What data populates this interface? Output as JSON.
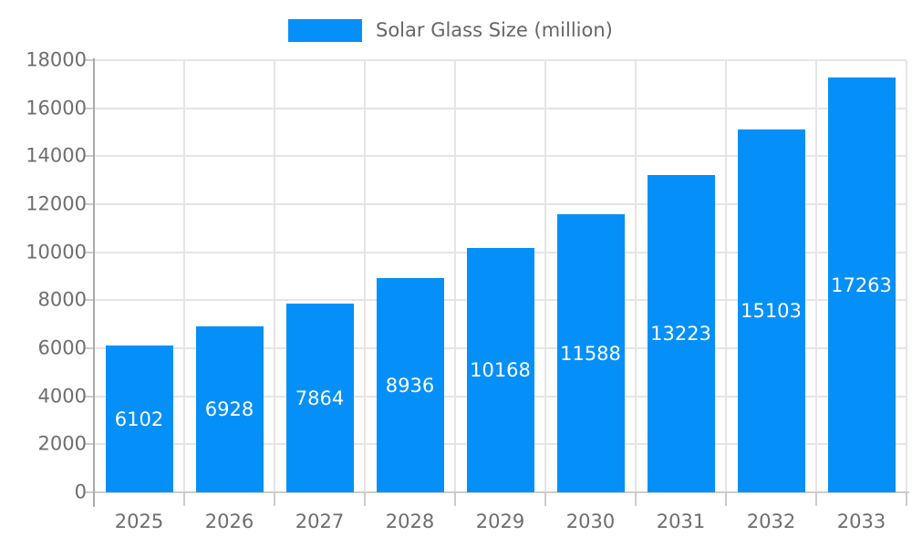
{
  "legend": {
    "label": "Solar Glass Size (million)"
  },
  "colors": {
    "bar": "#0490f8",
    "bar_label": "#ffffff",
    "axis_text": "#6e6e6e",
    "legend_text": "#666666",
    "grid": "#e5e5e5",
    "y_axis_line": "#aaaaaa",
    "x_axis_line": "#cccccc"
  },
  "chart_data": {
    "type": "bar",
    "title": "Solar Glass Size (million)",
    "categories": [
      "2025",
      "2026",
      "2027",
      "2028",
      "2029",
      "2030",
      "2031",
      "2032",
      "2033"
    ],
    "values": [
      6102,
      6928,
      7864,
      8936,
      10168,
      11588,
      13223,
      15103,
      17263
    ],
    "series_name": "Solar Glass Size (million)",
    "xlabel": "",
    "ylabel": "",
    "ylim": [
      0,
      18000
    ],
    "ytick_step": 2000,
    "yticks": [
      0,
      2000,
      4000,
      6000,
      8000,
      10000,
      12000,
      14000,
      16000,
      18000
    ],
    "grid": true,
    "bar_labels_inside": true,
    "legend_position": "top-center"
  }
}
